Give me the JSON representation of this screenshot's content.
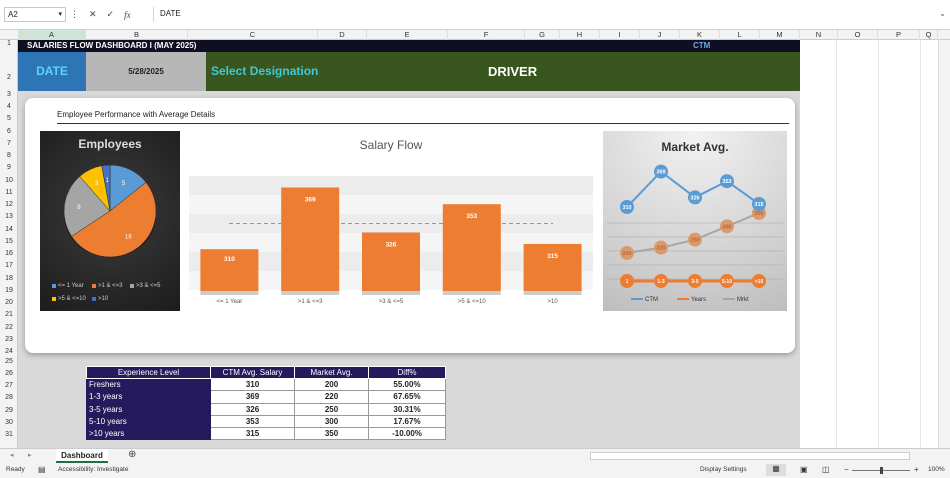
{
  "formula_bar": {
    "cell": "A2",
    "formula": "DATE",
    "cancel": "✕",
    "enter": "✓",
    "fx": "fx"
  },
  "columns": [
    "A",
    "B",
    "C",
    "D",
    "E",
    "F",
    "G",
    "H",
    "I",
    "J",
    "K",
    "L",
    "M",
    "N",
    "O",
    "P",
    "Q"
  ],
  "rows": [
    "1",
    "2",
    "3",
    "4",
    "5",
    "6",
    "7",
    "8",
    "9",
    "10",
    "11",
    "12",
    "13",
    "14",
    "15",
    "16",
    "17",
    "18",
    "19",
    "20",
    "21",
    "22",
    "23",
    "24",
    "25",
    "26",
    "27",
    "28",
    "29",
    "30",
    "31"
  ],
  "header": {
    "title": "SALARIES FLOW DASHBOARD   I   (MAY 2025)",
    "ctm_label": "CTM",
    "date_label": "DATE",
    "date_value": "5/28/2025",
    "select_label": "Select Designation",
    "designation": "DRIVER"
  },
  "card": {
    "title": "Employee Performance with Average Details"
  },
  "colors": {
    "blue": "#5b9bd5",
    "orange": "#ed7d31",
    "grey": "#a5a5a5",
    "yellow": "#ffc000",
    "navy": "#251a5c",
    "green": "#39561f"
  },
  "employees_chart": {
    "title": "Employees",
    "slices": [
      {
        "label": "<= 1 Year",
        "value": 5,
        "color": "#5b9bd5"
      },
      {
        "label": ">1 & <=3",
        "value": 18,
        "color": "#ed7d31"
      },
      {
        "label": ">3 & <=5",
        "value": 8,
        "color": "#a5a5a5"
      },
      {
        "label": ">5 & <=10",
        "value": 3,
        "color": "#ffc000"
      },
      {
        "label": ">10",
        "value": 1,
        "color": "#4472c4"
      }
    ]
  },
  "chart_data": [
    {
      "type": "bar",
      "title": "Salary Flow",
      "categories": [
        "<= 1 Year",
        ">1 & <=3",
        ">3 & <=5",
        ">5 & <=10",
        ">10"
      ],
      "values": [
        310,
        369,
        326,
        353,
        315
      ],
      "ylim": [
        270,
        380
      ],
      "average_line": true
    },
    {
      "type": "line",
      "title": "Market Avg.",
      "series": [
        {
          "name": "CTM",
          "values": [
            310,
            369,
            326,
            353,
            315
          ],
          "color": "#5b9bd5"
        },
        {
          "name": "Years",
          "values": [
            "1",
            "1-3",
            "3-5",
            "5-10",
            ">10"
          ],
          "color": "#ed7d31"
        },
        {
          "name": "Mrkt",
          "values": [
            200,
            220,
            250,
            300,
            350
          ],
          "color": "#a5a5a5"
        }
      ]
    }
  ],
  "table": {
    "headers": [
      "Experience Level",
      "CTM Avg. Salary",
      "Market Avg.",
      "Diff%"
    ],
    "rows": [
      [
        "Freshers",
        "310",
        "200",
        "55.00%"
      ],
      [
        "1-3 years",
        "369",
        "220",
        "67.65%"
      ],
      [
        "3-5 years",
        "326",
        "250",
        "30.31%"
      ],
      [
        "5-10 years",
        "353",
        "300",
        "17.67%"
      ],
      [
        ">10 years",
        "315",
        "350",
        "-10.00%"
      ]
    ]
  },
  "sheet_tab": "Dashboard",
  "status": {
    "ready": "Ready",
    "accessibility": "Accessibility: Investigate",
    "display": "Display Settings",
    "zoom": "100%"
  }
}
